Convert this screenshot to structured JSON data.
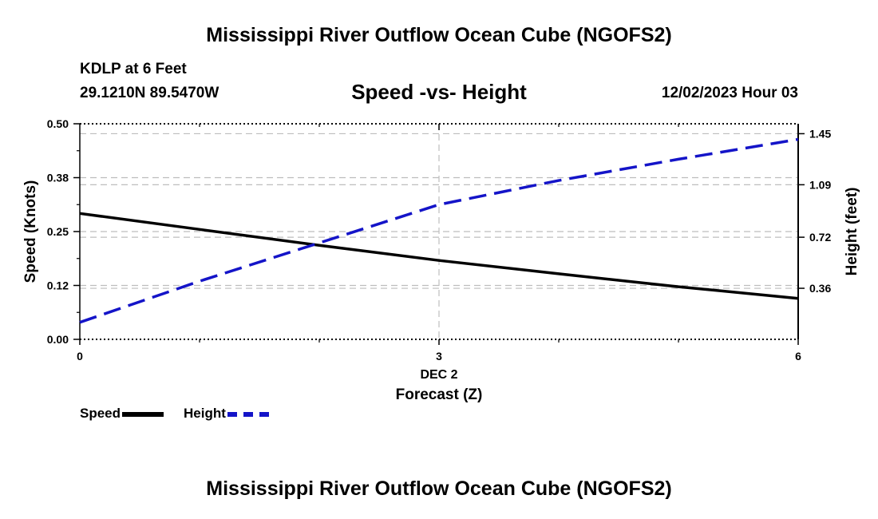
{
  "header": {
    "title": "Mississippi River Outflow Ocean Cube (NGOFS2)",
    "station": "KDLP at 6 Feet",
    "coords": "29.1210N  89.5470W",
    "subtitle": "Speed -vs- Height",
    "date": "12/02/2023 Hour 03"
  },
  "footer": {
    "title": "Mississippi River Outflow Ocean Cube (NGOFS2)"
  },
  "legend": {
    "speed_label": "Speed",
    "height_label": "Height"
  },
  "colors": {
    "speed": "#000000",
    "height": "#1414c8",
    "grid": "#bdbdbd"
  },
  "chart_data": {
    "type": "line",
    "xlabel": "Forecast (Z)",
    "xlabel_date": "DEC 2",
    "ylabel_left": "Speed (Knots)",
    "ylabel_right": "Height (feet)",
    "xlim": [
      0,
      6
    ],
    "x_ticks": [
      "0",
      "3",
      "6"
    ],
    "ylim_left": [
      0,
      0.5
    ],
    "y_ticks_left": [
      "0.00",
      "0.12",
      "0.25",
      "0.38",
      "0.50"
    ],
    "ylim_right": [
      0,
      1.52
    ],
    "y_ticks_right": [
      {
        "label": "0.36",
        "value": 0.36
      },
      {
        "label": "0.72",
        "value": 0.72
      },
      {
        "label": "1.09",
        "value": 1.09
      },
      {
        "label": "1.45",
        "value": 1.45
      }
    ],
    "grid": true,
    "legend_position": "bottom-left",
    "series": [
      {
        "name": "Speed",
        "axis": "left",
        "style": "solid",
        "x": [
          0,
          1,
          2,
          3,
          4,
          5,
          6
        ],
        "values": [
          0.292,
          0.255,
          0.218,
          0.183,
          0.152,
          0.122,
          0.095
        ]
      },
      {
        "name": "Height",
        "axis": "right",
        "style": "dashed",
        "x": [
          0,
          1,
          2,
          3,
          4,
          5,
          6
        ],
        "values": [
          0.12,
          0.41,
          0.68,
          0.95,
          1.12,
          1.27,
          1.41
        ]
      }
    ]
  }
}
